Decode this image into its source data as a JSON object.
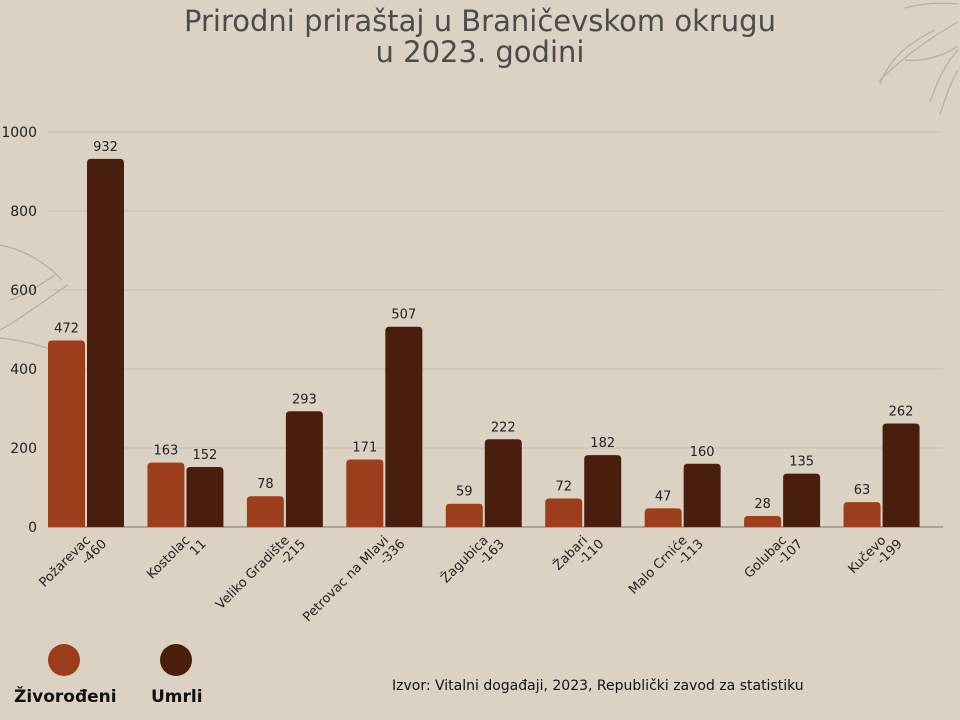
{
  "title_line1": "Prirodni priraštaj u Braničevskom okrugu",
  "title_line2": "u 2023. godini",
  "source": "Izvor: Vitalni događaji, 2023, Republički zavod za statistiku",
  "colors": {
    "background": "#dbd2c4",
    "zivorodeni": "#9c3d1b",
    "umrli": "#4a1e0e"
  },
  "chart_data": {
    "type": "bar",
    "categories": [
      "Požarevac",
      "Kostolac",
      "Veliko Gradište",
      "Petrovac na Mlavi",
      "Žagubica",
      "Žabari",
      "Malo Crniće",
      "Golubac",
      "Kučevo"
    ],
    "category_sublabels": [
      "-460",
      "11",
      "-215",
      "-336",
      "-163",
      "-110",
      "-113",
      "-107",
      "-199"
    ],
    "series": [
      {
        "name": "Živorođeni",
        "values": [
          472,
          163,
          78,
          171,
          59,
          72,
          47,
          28,
          63
        ]
      },
      {
        "name": "Umrli",
        "values": [
          932,
          152,
          293,
          507,
          222,
          182,
          160,
          135,
          262
        ]
      }
    ],
    "ylim": [
      0,
      1000
    ],
    "yticks": [
      0,
      200,
      400,
      600,
      800,
      1000
    ],
    "grid": true,
    "legend_position": "bottom-left"
  }
}
